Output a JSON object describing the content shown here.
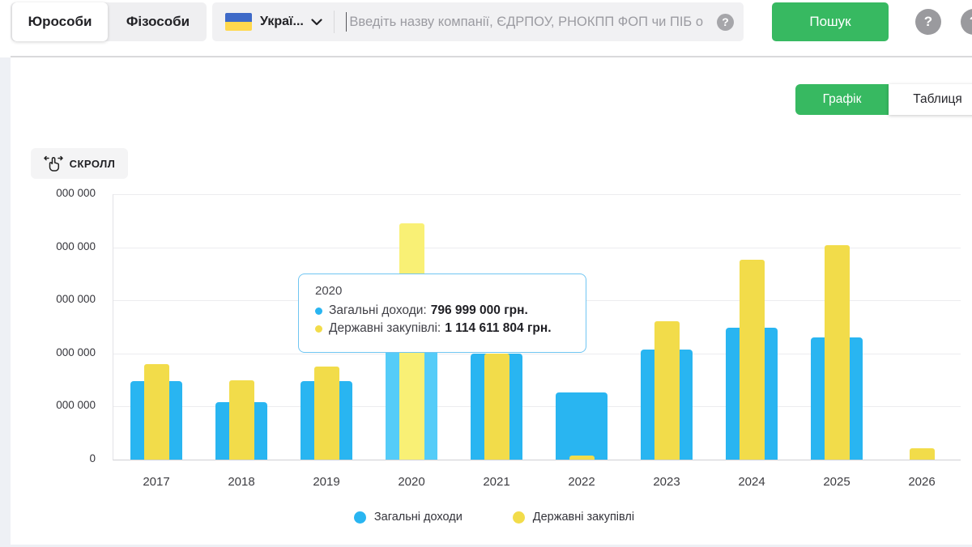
{
  "header": {
    "tabs": [
      {
        "label": "Юрособи",
        "active": true
      },
      {
        "label": "Фізособи",
        "active": false
      }
    ],
    "language": {
      "label": "Украї...",
      "flag": "ukraine-flag",
      "flag_blue": "#3e6ac8",
      "flag_yellow": "#ffd84d"
    },
    "search": {
      "placeholder": "Введіть назву компанії, ЄДРПОУ, РНОКПП ФОП чи ПІБ о",
      "help_glyph": "?"
    },
    "search_button_label": "Пошук",
    "right_help_glyph": "?",
    "right_partial_glyph": "?"
  },
  "view_toggle": {
    "chart_label": "Графік",
    "table_label": "Таблиця",
    "active": "Графік",
    "active_color": "#37b961"
  },
  "scroll_button_label": "СКРОЛЛ",
  "chart_data": {
    "type": "bar",
    "categories": [
      "2017",
      "2018",
      "2019",
      "2020",
      "2021",
      "2022",
      "2023",
      "2024",
      "2025",
      "2026"
    ],
    "series": [
      {
        "name": "Загальні доходи",
        "color": "#29b5f1",
        "hover_color": "#55ccf8",
        "values": [
          370000000,
          270000000,
          370000000,
          796999000,
          500000000,
          315000000,
          520000000,
          620000000,
          575000000,
          0
        ]
      },
      {
        "name": "Державні закупівлі",
        "color": "#f2dc4a",
        "hover_color": "#f9f075",
        "values": [
          450000000,
          375000000,
          440000000,
          1114611804,
          500000000,
          20000000,
          650000000,
          940000000,
          1010000000,
          55000000
        ]
      }
    ],
    "y_axis": {
      "tick_labels_visible": [
        "000 000",
        "000 000",
        "000 000",
        "000 000",
        "000 000",
        "0"
      ],
      "ylim": [
        0,
        1250000000
      ],
      "tick_step": 250000000,
      "grid": true
    },
    "highlighted_category": "2020",
    "legend_position": "bottom",
    "legend": [
      "Загальні доходи",
      "Державні закупівлі"
    ]
  },
  "tooltip": {
    "title": "2020",
    "rows": [
      {
        "label": "Загальні доходи:",
        "value": "796 999 000 грн.",
        "color": "#29b5f1"
      },
      {
        "label": "Державні закупівлі:",
        "value": "1 114 611 804 грн.",
        "color": "#f2dc4a"
      }
    ]
  }
}
